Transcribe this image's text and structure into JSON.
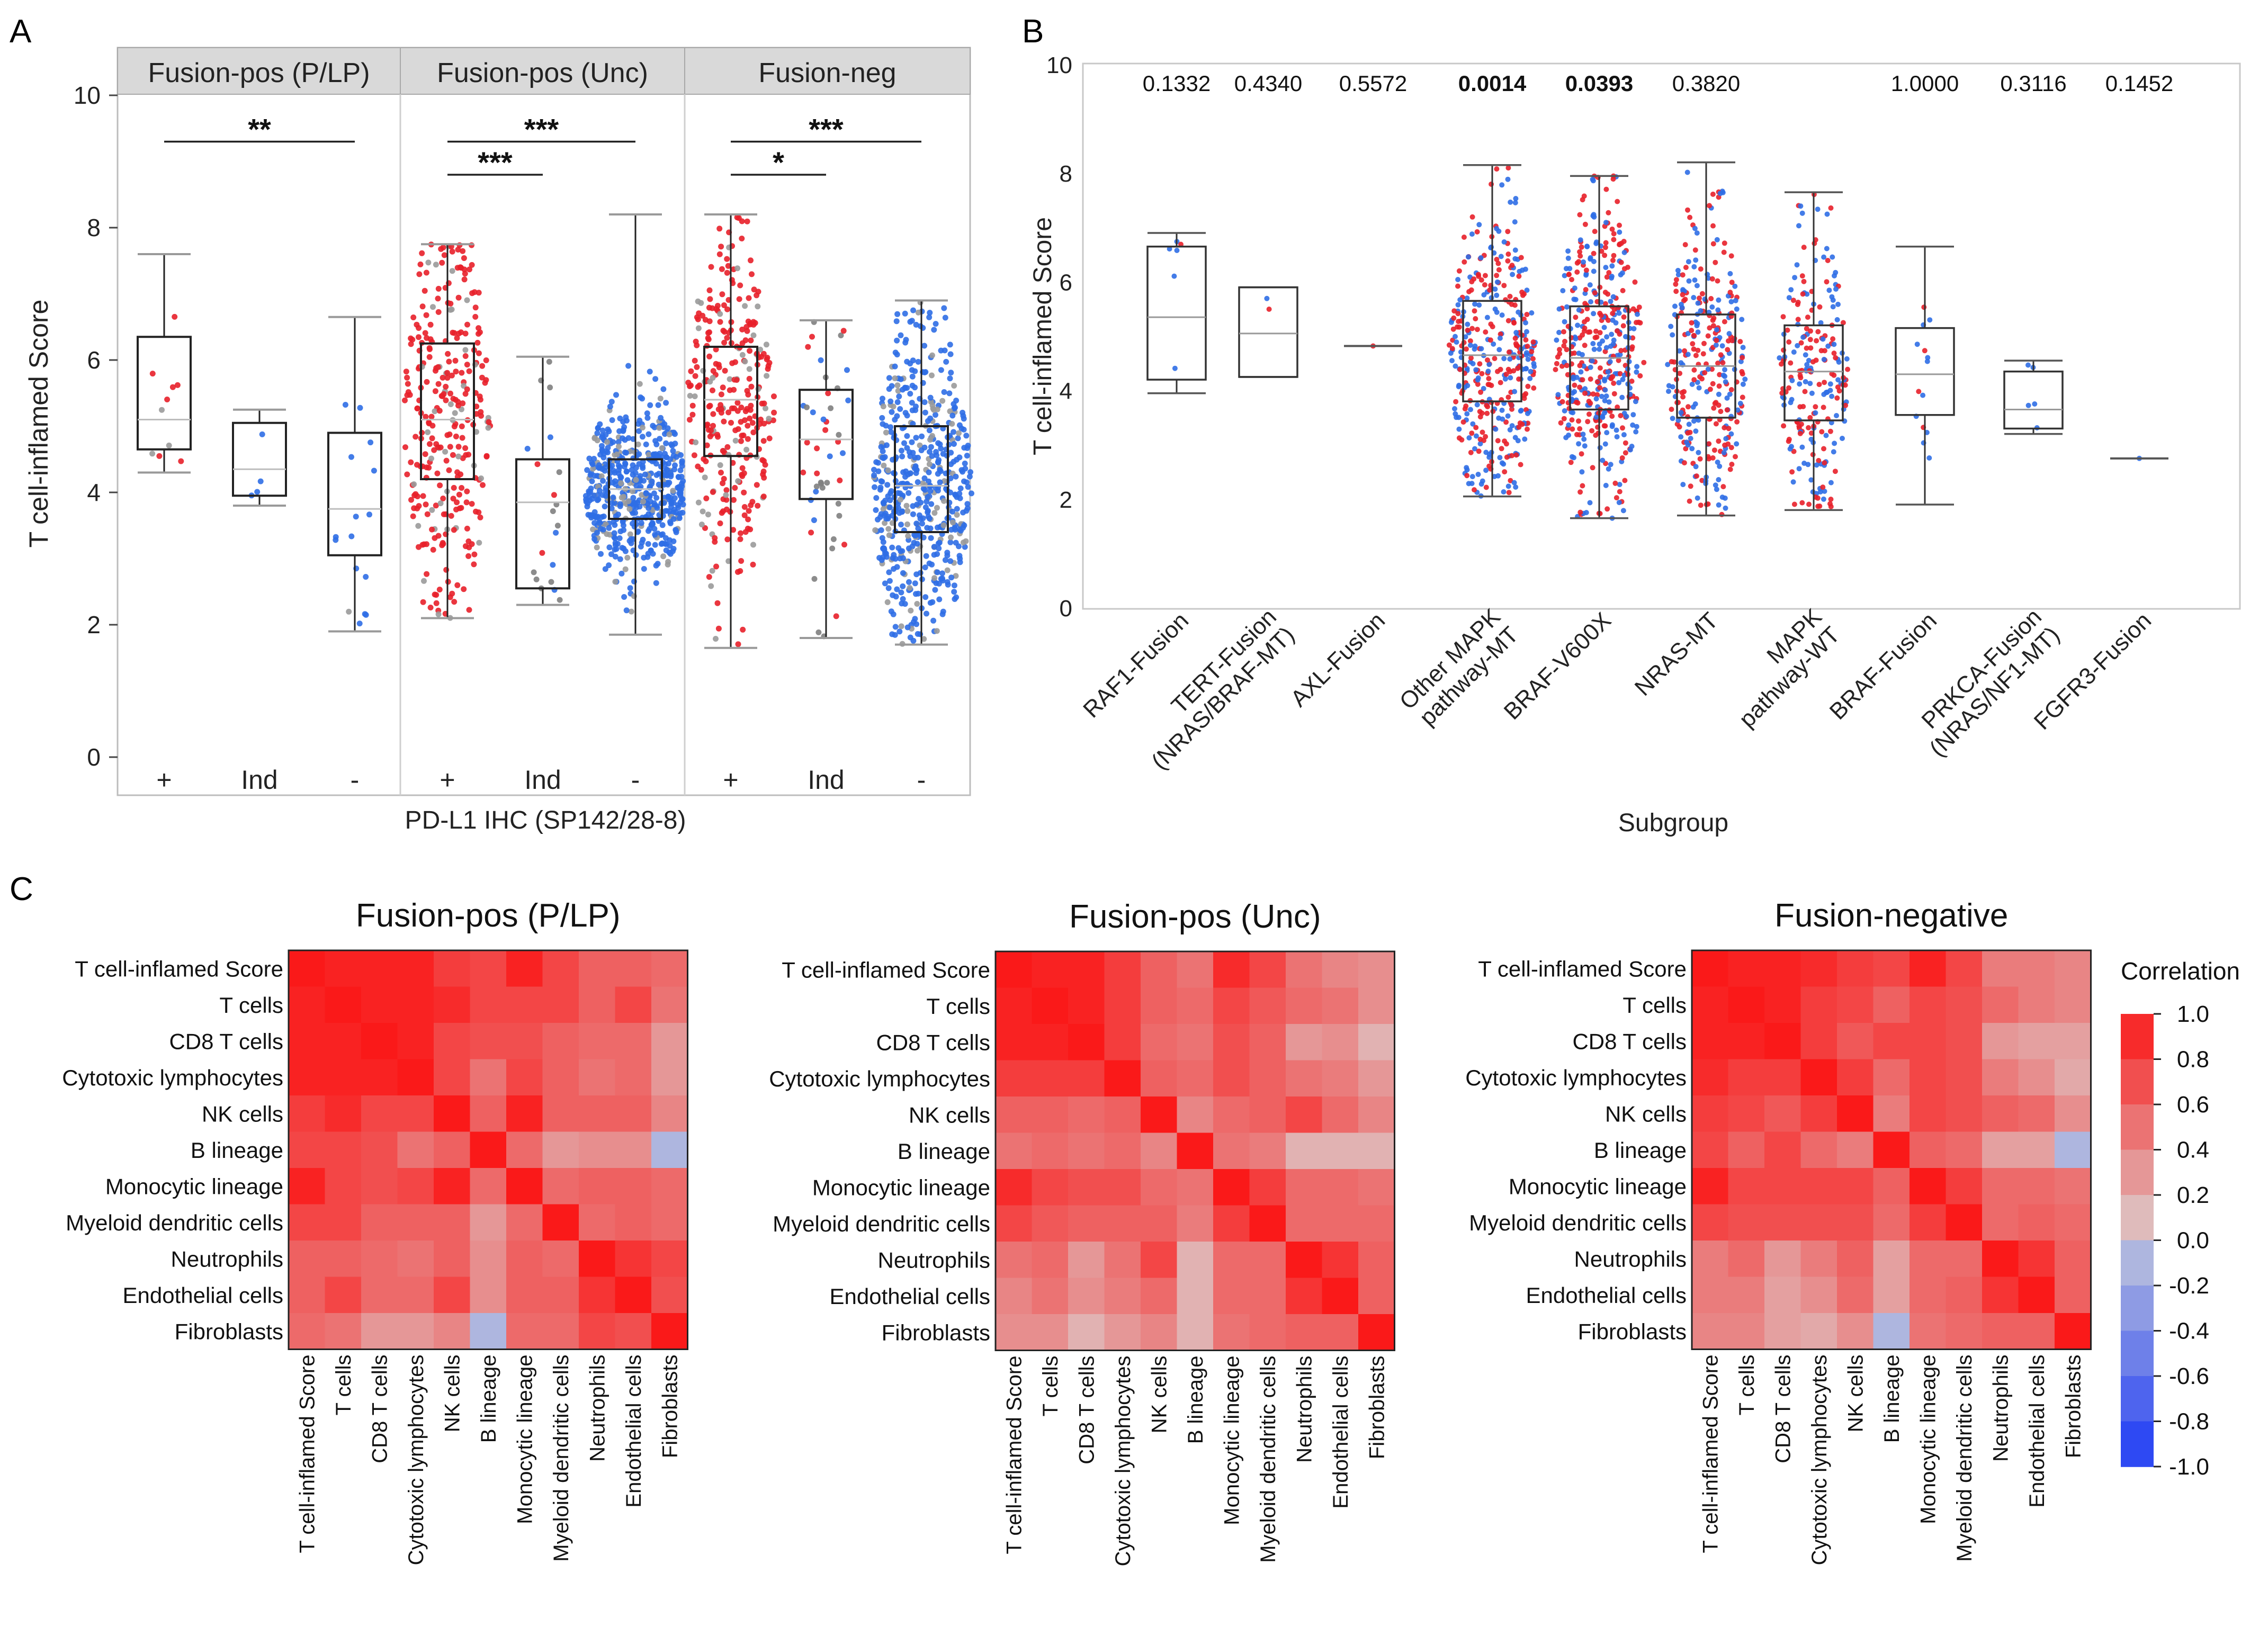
{
  "colors": {
    "red": "#e8202a",
    "blue": "#2f6ee6",
    "strip": "#d9d9d9",
    "frame": "#b0b0b0",
    "box": "#222222"
  },
  "panels": {
    "a": {
      "letter": "A"
    },
    "b": {
      "letter": "B"
    },
    "c": {
      "letter": "C"
    }
  },
  "chart_data": [
    {
      "id": "panelA",
      "type": "box",
      "ylabel": "T cell-inflamed Score",
      "xlabel": "PD-L1 IHC (SP142/28-8)",
      "ylim": [
        0,
        10
      ],
      "yticks": [
        0,
        2,
        4,
        6,
        8,
        10
      ],
      "groups": [
        {
          "name": "Fusion-pos (P/LP)",
          "boxes": [
            {
              "label": "+",
              "q1": 4.65,
              "median": 5.1,
              "q3": 6.35,
              "min": 4.3,
              "max": 7.6,
              "n": 10,
              "color": "red"
            },
            {
              "label": "Ind",
              "q1": 3.95,
              "median": 4.35,
              "q3": 5.05,
              "min": 3.8,
              "max": 5.25,
              "n": 4,
              "color": "blue"
            },
            {
              "label": "-",
              "q1": 3.05,
              "median": 3.75,
              "q3": 4.9,
              "min": 1.9,
              "max": 6.65,
              "n": 16,
              "color": "blue"
            }
          ],
          "sig": [
            {
              "from": 0,
              "to": 2,
              "label": "**",
              "y": 9.3
            }
          ]
        },
        {
          "name": "Fusion-pos (Unc)",
          "boxes": [
            {
              "label": "+",
              "q1": 4.2,
              "median": 5.1,
              "q3": 6.25,
              "min": 2.1,
              "max": 7.75,
              "n": 300,
              "color": "red"
            },
            {
              "label": "Ind",
              "q1": 2.55,
              "median": 3.85,
              "q3": 4.5,
              "min": 2.3,
              "max": 6.05,
              "n": 20,
              "color": "mixed"
            },
            {
              "label": "-",
              "q1": 3.6,
              "median": 4.05,
              "q3": 4.5,
              "min": 1.85,
              "max": 8.2,
              "n": 560,
              "color": "blue"
            }
          ],
          "sig": [
            {
              "from": 0,
              "to": 1,
              "label": "***",
              "y": 8.8
            },
            {
              "from": 0,
              "to": 2,
              "label": "***",
              "y": 9.3
            }
          ]
        },
        {
          "name": "Fusion-neg",
          "boxes": [
            {
              "label": "+",
              "q1": 4.55,
              "median": 5.4,
              "q3": 6.2,
              "min": 1.65,
              "max": 8.2,
              "n": 300,
              "color": "red"
            },
            {
              "label": "Ind",
              "q1": 3.9,
              "median": 4.8,
              "q3": 5.55,
              "min": 1.8,
              "max": 6.6,
              "n": 45,
              "color": "mixed"
            },
            {
              "label": "-",
              "q1": 3.4,
              "median": 4.1,
              "q3": 5.0,
              "min": 1.7,
              "max": 6.9,
              "n": 560,
              "color": "blue"
            }
          ],
          "sig": [
            {
              "from": 0,
              "to": 1,
              "label": "*",
              "y": 8.8
            },
            {
              "from": 0,
              "to": 2,
              "label": "***",
              "y": 9.3
            }
          ]
        }
      ]
    },
    {
      "id": "panelB",
      "type": "box",
      "ylabel": "T cell-inflamed Score",
      "xlabel": "Subgroup",
      "ylim": [
        0,
        10
      ],
      "yticks": [
        0,
        2,
        4,
        6,
        8,
        10
      ],
      "categories": [
        {
          "label": "RAF1-Fusion",
          "p": "0.1332",
          "bold": false,
          "q1": 4.2,
          "median": 5.35,
          "q3": 6.65,
          "min": 3.95,
          "max": 6.9,
          "n": 6
        },
        {
          "label": "TERT-Fusion (NRAS/BRAF-MT)",
          "p": "0.4340",
          "bold": false,
          "q1": 4.25,
          "median": 5.05,
          "q3": 5.9,
          "min": 4.25,
          "max": 5.9,
          "n": 2
        },
        {
          "label": "AXL-Fusion",
          "p": "0.5572",
          "bold": false,
          "q1": 4.82,
          "median": 4.82,
          "q3": 4.82,
          "min": 4.82,
          "max": 4.82,
          "n": 1
        },
        {
          "label": "Other MAPK pathway-MT",
          "p": "0.0014",
          "bold": true,
          "q1": 3.8,
          "median": 4.65,
          "q3": 5.65,
          "min": 2.05,
          "max": 8.15,
          "n": 380
        },
        {
          "label": "BRAF-V600X",
          "p": "0.0393",
          "bold": true,
          "q1": 3.65,
          "median": 4.6,
          "q3": 5.55,
          "min": 1.65,
          "max": 7.95,
          "n": 420
        },
        {
          "label": "NRAS-MT",
          "p": "0.3820",
          "bold": false,
          "q1": 3.5,
          "median": 4.45,
          "q3": 5.4,
          "min": 1.7,
          "max": 8.2,
          "n": 300
        },
        {
          "label": "MAPK pathway-WT",
          "p": "",
          "bold": false,
          "q1": 3.45,
          "median": 4.35,
          "q3": 5.2,
          "min": 1.8,
          "max": 7.65,
          "n": 220
        },
        {
          "label": "BRAF-Fusion",
          "p": "1.0000",
          "bold": false,
          "q1": 3.55,
          "median": 4.3,
          "q3": 5.15,
          "min": 1.9,
          "max": 6.65,
          "n": 14
        },
        {
          "label": "PRKCA-Fusion (NRAS/NF1-MT)",
          "p": "0.3116",
          "bold": false,
          "q1": 3.3,
          "median": 3.65,
          "q3": 4.35,
          "min": 3.2,
          "max": 4.55,
          "n": 5
        },
        {
          "label": "FGFR3-Fusion",
          "p": "0.1452",
          "bold": false,
          "q1": 2.75,
          "median": 2.75,
          "q3": 2.75,
          "min": 2.75,
          "max": 2.75,
          "n": 1
        }
      ]
    },
    {
      "id": "panelC",
      "type": "heatmap",
      "legend_title": "Correlation",
      "legend_ticks": [
        "1.0",
        "0.8",
        "0.6",
        "0.4",
        "0.2",
        "0.0",
        "-0.2",
        "-0.4",
        "-0.6",
        "-0.8",
        "-1.0"
      ],
      "labels": [
        "T cell-inflamed Score",
        "T cells",
        "CD8 T cells",
        "Cytotoxic lymphocytes",
        "NK cells",
        "B lineage",
        "Monocytic lineage",
        "Myeloid dendritic cells",
        "Neutrophils",
        "Endothelial cells",
        "Fibroblasts"
      ],
      "heatmaps": [
        {
          "title": "Fusion-pos (P/LP)",
          "matrix": [
            [
              1.0,
              0.95,
              0.95,
              0.95,
              0.8,
              0.75,
              0.95,
              0.75,
              0.6,
              0.6,
              0.55
            ],
            [
              0.95,
              1.0,
              0.95,
              0.95,
              0.9,
              0.75,
              0.75,
              0.75,
              0.6,
              0.75,
              0.5
            ],
            [
              0.95,
              0.95,
              1.0,
              0.95,
              0.75,
              0.7,
              0.7,
              0.6,
              0.55,
              0.55,
              0.3
            ],
            [
              0.95,
              0.95,
              0.95,
              1.0,
              0.75,
              0.5,
              0.75,
              0.6,
              0.5,
              0.55,
              0.3
            ],
            [
              0.8,
              0.9,
              0.75,
              0.75,
              1.0,
              0.6,
              0.95,
              0.6,
              0.6,
              0.6,
              0.4
            ],
            [
              0.75,
              0.75,
              0.7,
              0.5,
              0.6,
              1.0,
              0.55,
              0.3,
              0.35,
              0.35,
              -0.1
            ],
            [
              0.95,
              0.75,
              0.7,
              0.75,
              0.95,
              0.55,
              1.0,
              0.55,
              0.6,
              0.6,
              0.55
            ],
            [
              0.75,
              0.75,
              0.6,
              0.6,
              0.6,
              0.3,
              0.55,
              1.0,
              0.55,
              0.6,
              0.55
            ],
            [
              0.6,
              0.6,
              0.55,
              0.5,
              0.6,
              0.35,
              0.6,
              0.55,
              1.0,
              0.85,
              0.75
            ],
            [
              0.6,
              0.75,
              0.55,
              0.55,
              0.75,
              0.35,
              0.6,
              0.6,
              0.85,
              1.0,
              0.7
            ],
            [
              0.55,
              0.5,
              0.3,
              0.3,
              0.4,
              -0.1,
              0.55,
              0.55,
              0.75,
              0.7,
              1.0
            ]
          ]
        },
        {
          "title": "Fusion-pos (Unc)",
          "matrix": [
            [
              1.0,
              0.95,
              0.95,
              0.8,
              0.6,
              0.5,
              0.9,
              0.75,
              0.5,
              0.4,
              0.35
            ],
            [
              0.95,
              1.0,
              0.95,
              0.8,
              0.6,
              0.55,
              0.75,
              0.65,
              0.55,
              0.5,
              0.35
            ],
            [
              0.95,
              0.95,
              1.0,
              0.8,
              0.55,
              0.5,
              0.7,
              0.6,
              0.3,
              0.35,
              0.15
            ],
            [
              0.8,
              0.8,
              0.8,
              1.0,
              0.6,
              0.55,
              0.7,
              0.6,
              0.5,
              0.45,
              0.3
            ],
            [
              0.6,
              0.6,
              0.55,
              0.6,
              1.0,
              0.4,
              0.55,
              0.6,
              0.75,
              0.55,
              0.4
            ],
            [
              0.5,
              0.55,
              0.5,
              0.55,
              0.4,
              1.0,
              0.5,
              0.45,
              0.15,
              0.15,
              0.15
            ],
            [
              0.9,
              0.75,
              0.7,
              0.7,
              0.55,
              0.5,
              1.0,
              0.8,
              0.55,
              0.55,
              0.5
            ],
            [
              0.75,
              0.65,
              0.6,
              0.6,
              0.6,
              0.45,
              0.8,
              1.0,
              0.55,
              0.55,
              0.55
            ],
            [
              0.5,
              0.55,
              0.3,
              0.5,
              0.75,
              0.15,
              0.55,
              0.55,
              1.0,
              0.85,
              0.6
            ],
            [
              0.4,
              0.5,
              0.35,
              0.45,
              0.55,
              0.15,
              0.55,
              0.55,
              0.85,
              1.0,
              0.6
            ],
            [
              0.35,
              0.35,
              0.15,
              0.3,
              0.4,
              0.15,
              0.5,
              0.55,
              0.6,
              0.6,
              1.0
            ]
          ]
        },
        {
          "title": "Fusion-negative",
          "matrix": [
            [
              1.0,
              0.95,
              0.95,
              0.9,
              0.8,
              0.75,
              0.95,
              0.75,
              0.45,
              0.45,
              0.4
            ],
            [
              0.95,
              1.0,
              0.95,
              0.8,
              0.75,
              0.6,
              0.75,
              0.7,
              0.55,
              0.45,
              0.4
            ],
            [
              0.95,
              0.95,
              1.0,
              0.8,
              0.65,
              0.75,
              0.75,
              0.7,
              0.3,
              0.25,
              0.25
            ],
            [
              0.9,
              0.8,
              0.8,
              1.0,
              0.8,
              0.55,
              0.75,
              0.7,
              0.45,
              0.35,
              0.2
            ],
            [
              0.8,
              0.75,
              0.65,
              0.8,
              1.0,
              0.45,
              0.75,
              0.7,
              0.6,
              0.55,
              0.35
            ],
            [
              0.75,
              0.6,
              0.75,
              0.55,
              0.45,
              1.0,
              0.6,
              0.55,
              0.25,
              0.25,
              -0.1
            ],
            [
              0.95,
              0.75,
              0.75,
              0.75,
              0.75,
              0.6,
              1.0,
              0.8,
              0.55,
              0.55,
              0.5
            ],
            [
              0.75,
              0.7,
              0.7,
              0.7,
              0.7,
              0.55,
              0.8,
              1.0,
              0.55,
              0.6,
              0.55
            ],
            [
              0.45,
              0.55,
              0.3,
              0.45,
              0.6,
              0.25,
              0.55,
              0.55,
              1.0,
              0.85,
              0.6
            ],
            [
              0.45,
              0.45,
              0.25,
              0.35,
              0.55,
              0.25,
              0.55,
              0.6,
              0.85,
              1.0,
              0.6
            ],
            [
              0.4,
              0.4,
              0.25,
              0.2,
              0.35,
              -0.1,
              0.5,
              0.55,
              0.6,
              0.6,
              1.0
            ]
          ]
        }
      ]
    }
  ]
}
